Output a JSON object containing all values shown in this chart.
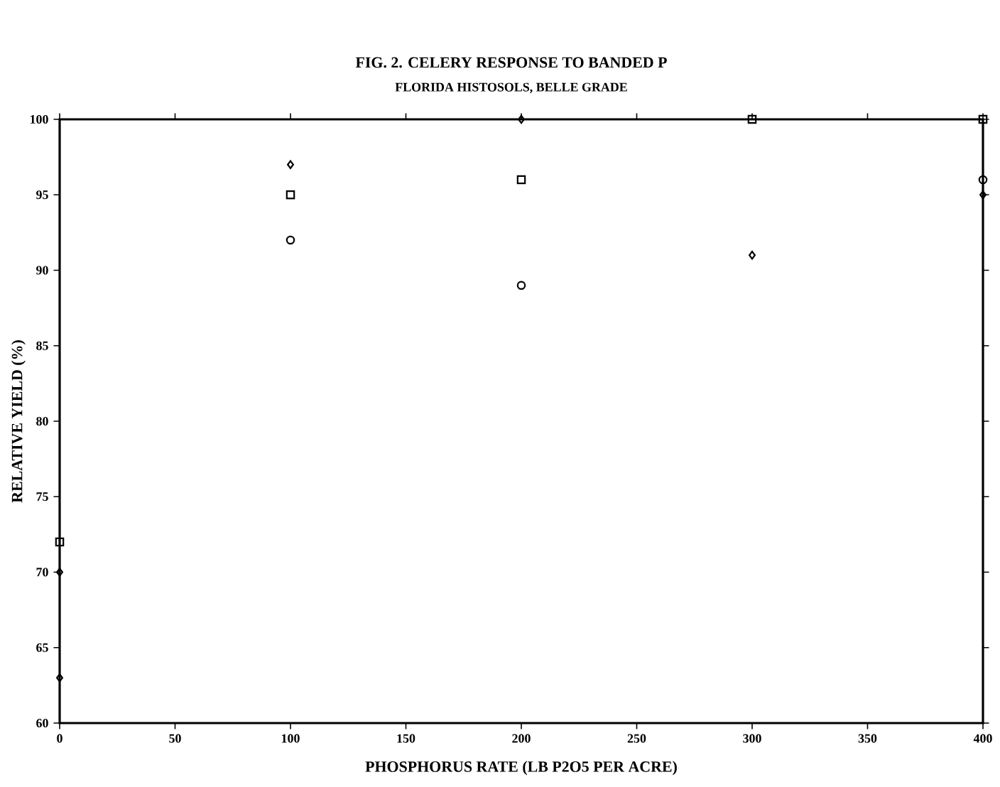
{
  "chart_data": {
    "type": "scatter",
    "title": "FIG. 2.  CELERY RESPONSE TO BANDED P",
    "subtitle": "FLORIDA HISTOSOLS, BELLE GRADE",
    "xlabel": "PHOSPHORUS RATE (LB P2O5 PER ACRE)",
    "ylabel": "RELATIVE YIELD (%)",
    "xlim": [
      0,
      400
    ],
    "ylim": [
      60,
      100
    ],
    "xticks": [
      0,
      50,
      100,
      150,
      200,
      250,
      300,
      350,
      400
    ],
    "yticks": [
      60,
      65,
      70,
      75,
      80,
      85,
      90,
      95,
      100
    ],
    "grid": false,
    "series": [
      {
        "marker": "diamond",
        "color": "#000000",
        "x": [
          0,
          200,
          400
        ],
        "values": [
          63,
          100,
          95
        ]
      },
      {
        "marker": "diamond",
        "color": "#000000",
        "x": [
          0,
          100,
          300
        ],
        "values": [
          70,
          97,
          91
        ]
      },
      {
        "marker": "square",
        "color": "#000000",
        "x": [
          0,
          100,
          200,
          300,
          400
        ],
        "values": [
          72,
          95,
          96,
          100,
          100
        ]
      },
      {
        "marker": "circle",
        "color": "#000000",
        "x": [
          100,
          200,
          400
        ],
        "values": [
          92,
          89,
          96
        ]
      }
    ]
  }
}
